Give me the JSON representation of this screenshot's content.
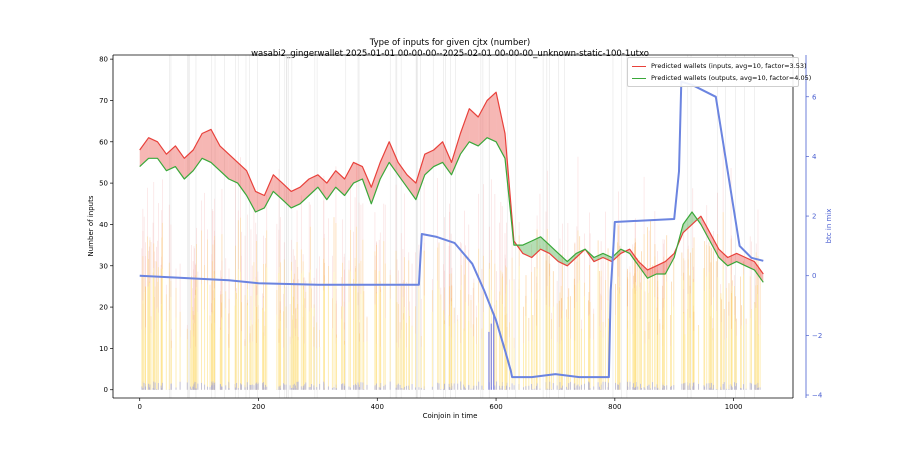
{
  "chart_data": {
    "type": "line",
    "title": "Type of inputs for given cjtx (number)",
    "subtitle": "wasabi2_gingerwallet 2025-01-01 00-00-00--2025-02-01 00-00-00_unknown-static-100-1utxo",
    "xlabel": "Coinjoin in time",
    "ylabel": "Number of inputs",
    "y2label": "btc in mix",
    "xlim": [
      -45,
      1100
    ],
    "ylim": [
      -2,
      81
    ],
    "y2lim": [
      -4.1,
      7.4
    ],
    "x_ticks": [
      0,
      200,
      400,
      600,
      800,
      1000
    ],
    "y_ticks": [
      0,
      10,
      20,
      30,
      40,
      50,
      60,
      70,
      80
    ],
    "y2_ticks": [
      -4,
      -2,
      0,
      2,
      4,
      6
    ],
    "series": [
      {
        "name": "Predicted wallets (inputs, avg=10, factor=3.53)",
        "color": "#e8413b",
        "x": [
          0,
          15,
          30,
          45,
          60,
          75,
          90,
          105,
          120,
          135,
          150,
          165,
          180,
          195,
          210,
          225,
          240,
          255,
          270,
          285,
          300,
          315,
          330,
          345,
          360,
          375,
          390,
          405,
          420,
          435,
          450,
          465,
          480,
          495,
          510,
          525,
          540,
          555,
          570,
          585,
          600,
          615,
          630,
          645,
          660,
          675,
          690,
          705,
          720,
          735,
          750,
          765,
          780,
          795,
          810,
          825,
          840,
          855,
          870,
          885,
          900,
          915,
          930,
          945,
          960,
          975,
          990,
          1005,
          1020,
          1035,
          1050
        ],
        "values": [
          58,
          61,
          60,
          57,
          59,
          56,
          58,
          62,
          63,
          59,
          57,
          55,
          53,
          48,
          47,
          52,
          50,
          48,
          49,
          51,
          52,
          50,
          53,
          51,
          55,
          54,
          49,
          55,
          60,
          55,
          52,
          50,
          57,
          58,
          60,
          55,
          62,
          68,
          66,
          70,
          72,
          62,
          36,
          33,
          32,
          34,
          33,
          31,
          30,
          32,
          34,
          31,
          32,
          31,
          33,
          34,
          31,
          29,
          30,
          31,
          33,
          38,
          40,
          42,
          38,
          34,
          32,
          33,
          32,
          31,
          28
        ]
      },
      {
        "name": "Predicted wallets (outputs, avg=10, factor=4.05)",
        "color": "#3aa83a",
        "x": [
          0,
          15,
          30,
          45,
          60,
          75,
          90,
          105,
          120,
          135,
          150,
          165,
          180,
          195,
          210,
          225,
          240,
          255,
          270,
          285,
          300,
          315,
          330,
          345,
          360,
          375,
          390,
          405,
          420,
          435,
          450,
          465,
          480,
          495,
          510,
          525,
          540,
          555,
          570,
          585,
          600,
          615,
          630,
          645,
          660,
          675,
          690,
          705,
          720,
          735,
          750,
          765,
          780,
          795,
          810,
          825,
          840,
          855,
          870,
          885,
          900,
          915,
          930,
          945,
          960,
          975,
          990,
          1005,
          1020,
          1035,
          1050
        ],
        "values": [
          54,
          56,
          56,
          53,
          54,
          51,
          53,
          56,
          55,
          53,
          51,
          50,
          47,
          43,
          44,
          48,
          46,
          44,
          45,
          47,
          49,
          46,
          49,
          47,
          50,
          51,
          45,
          51,
          55,
          52,
          49,
          46,
          52,
          54,
          55,
          52,
          57,
          60,
          59,
          61,
          60,
          56,
          35,
          35,
          36,
          37,
          35,
          33,
          31,
          33,
          34,
          32,
          33,
          32,
          34,
          33,
          30,
          27,
          28,
          28,
          32,
          40,
          43,
          40,
          36,
          32,
          30,
          31,
          30,
          29,
          26
        ]
      },
      {
        "name": "btc in mix",
        "color": "#6b84e0",
        "axis": "right",
        "x": [
          0,
          50,
          100,
          150,
          200,
          300,
          400,
          470,
          475,
          500,
          530,
          560,
          580,
          600,
          615,
          625,
          627,
          660,
          700,
          740,
          790,
          793,
          797,
          800,
          850,
          900,
          908,
          912,
          930,
          950,
          970,
          990,
          1010,
          1030,
          1050
        ],
        "values": [
          0,
          -0.05,
          -0.1,
          -0.15,
          -0.25,
          -0.3,
          -0.3,
          -0.3,
          1.4,
          1.3,
          1.1,
          0.4,
          -0.5,
          -1.5,
          -2.5,
          -3.2,
          -3.4,
          -3.4,
          -3.3,
          -3.4,
          -3.4,
          -0.5,
          0.8,
          1.8,
          1.85,
          1.9,
          3.5,
          6.5,
          6.4,
          6.2,
          6.0,
          3.5,
          1.0,
          0.6,
          0.5
        ]
      }
    ],
    "legend_position": "top-right",
    "grid": false
  }
}
